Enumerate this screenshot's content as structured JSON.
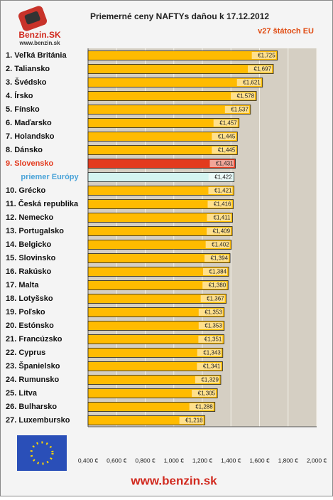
{
  "chart_data": {
    "type": "barh",
    "title": "Priemerné ceny NAFTYs daňou k 17.12.2012",
    "subtitle": "v27 štátoch EU",
    "logo": "Benzin.SK",
    "logo_url": "www.benzin.sk",
    "footer": "www.benzin.sk",
    "categories": [
      "1. Veľká Británia",
      "2. Taliansko",
      "3. Švédsko",
      "4. Írsko",
      "5. Fínsko",
      "6. Maďarsko",
      "7. Holandsko",
      "8. Dánsko",
      "9. Slovensko",
      "priemer Európy",
      "10. Grécko",
      "11. Česká republika",
      "12. Nemecko",
      "13. Portugalsko",
      "14. Belgicko",
      "15. Slovinsko",
      "16. Rakúsko",
      "17. Malta",
      "18. Lotyšsko",
      "19. Poľsko",
      "20. Estónsko",
      "21. Francúzsko",
      "22. Cyprus",
      "23. Španielsko",
      "24. Rumunsko",
      "25. Litva",
      "26. Bulharsko",
      "27. Luxembursko"
    ],
    "values": [
      1.725,
      1.697,
      1.621,
      1.578,
      1.537,
      1.457,
      1.445,
      1.445,
      1.431,
      1.422,
      1.421,
      1.416,
      1.411,
      1.409,
      1.402,
      1.394,
      1.384,
      1.38,
      1.367,
      1.353,
      1.353,
      1.351,
      1.343,
      1.341,
      1.329,
      1.305,
      1.288,
      1.218
    ],
    "value_labels": [
      "€1,725",
      "€1,697",
      "€1,621",
      "€1,578",
      "€1,537",
      "€1,457",
      "€1,445",
      "€1,445",
      "€1,431",
      "€1,422",
      "€1,421",
      "€1,416",
      "€1,411",
      "€1,409",
      "€1,402",
      "€1,394",
      "€1,384",
      "€1,380",
      "€1,367",
      "€1,353",
      "€1,353",
      "€1,351",
      "€1,343",
      "€1,341",
      "€1,329",
      "€1,305",
      "€1,288",
      "€1,218"
    ],
    "color": "#ffbb00",
    "highlight": {
      "8": {
        "color": "#e33a1e",
        "label_color": "#e33a1e"
      },
      "9": {
        "color": "#d4f4f0",
        "label_color": "#4aa3d8"
      }
    },
    "xlim": [
      0.4,
      2.0
    ],
    "xticks": [
      {
        "value": 0.4,
        "label": "0,400 €"
      },
      {
        "value": 0.6,
        "label": "0,600 €"
      },
      {
        "value": 0.8,
        "label": "0,800 €"
      },
      {
        "value": 1.0,
        "label": "1,000 €"
      },
      {
        "value": 1.2,
        "label": "1,200 €"
      },
      {
        "value": 1.4,
        "label": "1,400 €"
      },
      {
        "value": 1.6,
        "label": "1,600 €"
      },
      {
        "value": 1.8,
        "label": "1,800 €"
      },
      {
        "value": 2.0,
        "label": "2,000 €"
      }
    ],
    "grid": true
  }
}
